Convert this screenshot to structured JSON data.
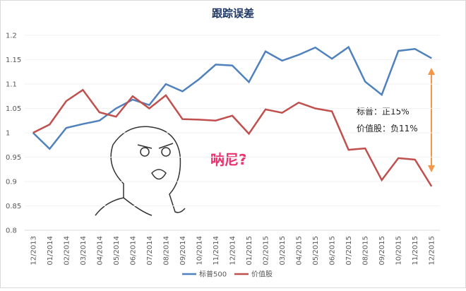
{
  "chart_data": {
    "type": "line",
    "title": "跟踪误差",
    "categories": [
      "12/2013",
      "01/2014",
      "02/2014",
      "03/2014",
      "04/2014",
      "05/2014",
      "06/2014",
      "07/2014",
      "08/2014",
      "09/2014",
      "10/2014",
      "11/2014",
      "12/2014",
      "01/2015",
      "02/2015",
      "03/2015",
      "04/2015",
      "05/2015",
      "06/2015",
      "07/2015",
      "08/2015",
      "09/2015",
      "10/2015",
      "11/2015",
      "12/2015"
    ],
    "series": [
      {
        "name": "标普500",
        "color": "#4f81bd",
        "values": [
          1.0,
          0.967,
          1.01,
          1.018,
          1.025,
          1.05,
          1.068,
          1.057,
          1.1,
          1.085,
          1.11,
          1.14,
          1.138,
          1.104,
          1.167,
          1.148,
          1.16,
          1.175,
          1.152,
          1.176,
          1.105,
          1.078,
          1.168,
          1.172,
          1.153
        ]
      },
      {
        "name": "价值股",
        "color": "#c0504d",
        "values": [
          1.0,
          1.017,
          1.065,
          1.088,
          1.042,
          1.033,
          1.075,
          1.05,
          1.077,
          1.028,
          1.027,
          1.025,
          1.035,
          0.998,
          1.048,
          1.041,
          1.062,
          1.05,
          1.044,
          0.965,
          0.968,
          0.903,
          0.948,
          0.945,
          0.89
        ]
      }
    ],
    "ylim": [
      0.8,
      1.2
    ],
    "yticks": [
      0.8,
      0.85,
      0.9,
      0.95,
      1,
      1.05,
      1.1,
      1.15,
      1.2
    ],
    "annotations": [
      "标普：正15%",
      "价值股：负11%",
      "呐尼?"
    ]
  }
}
